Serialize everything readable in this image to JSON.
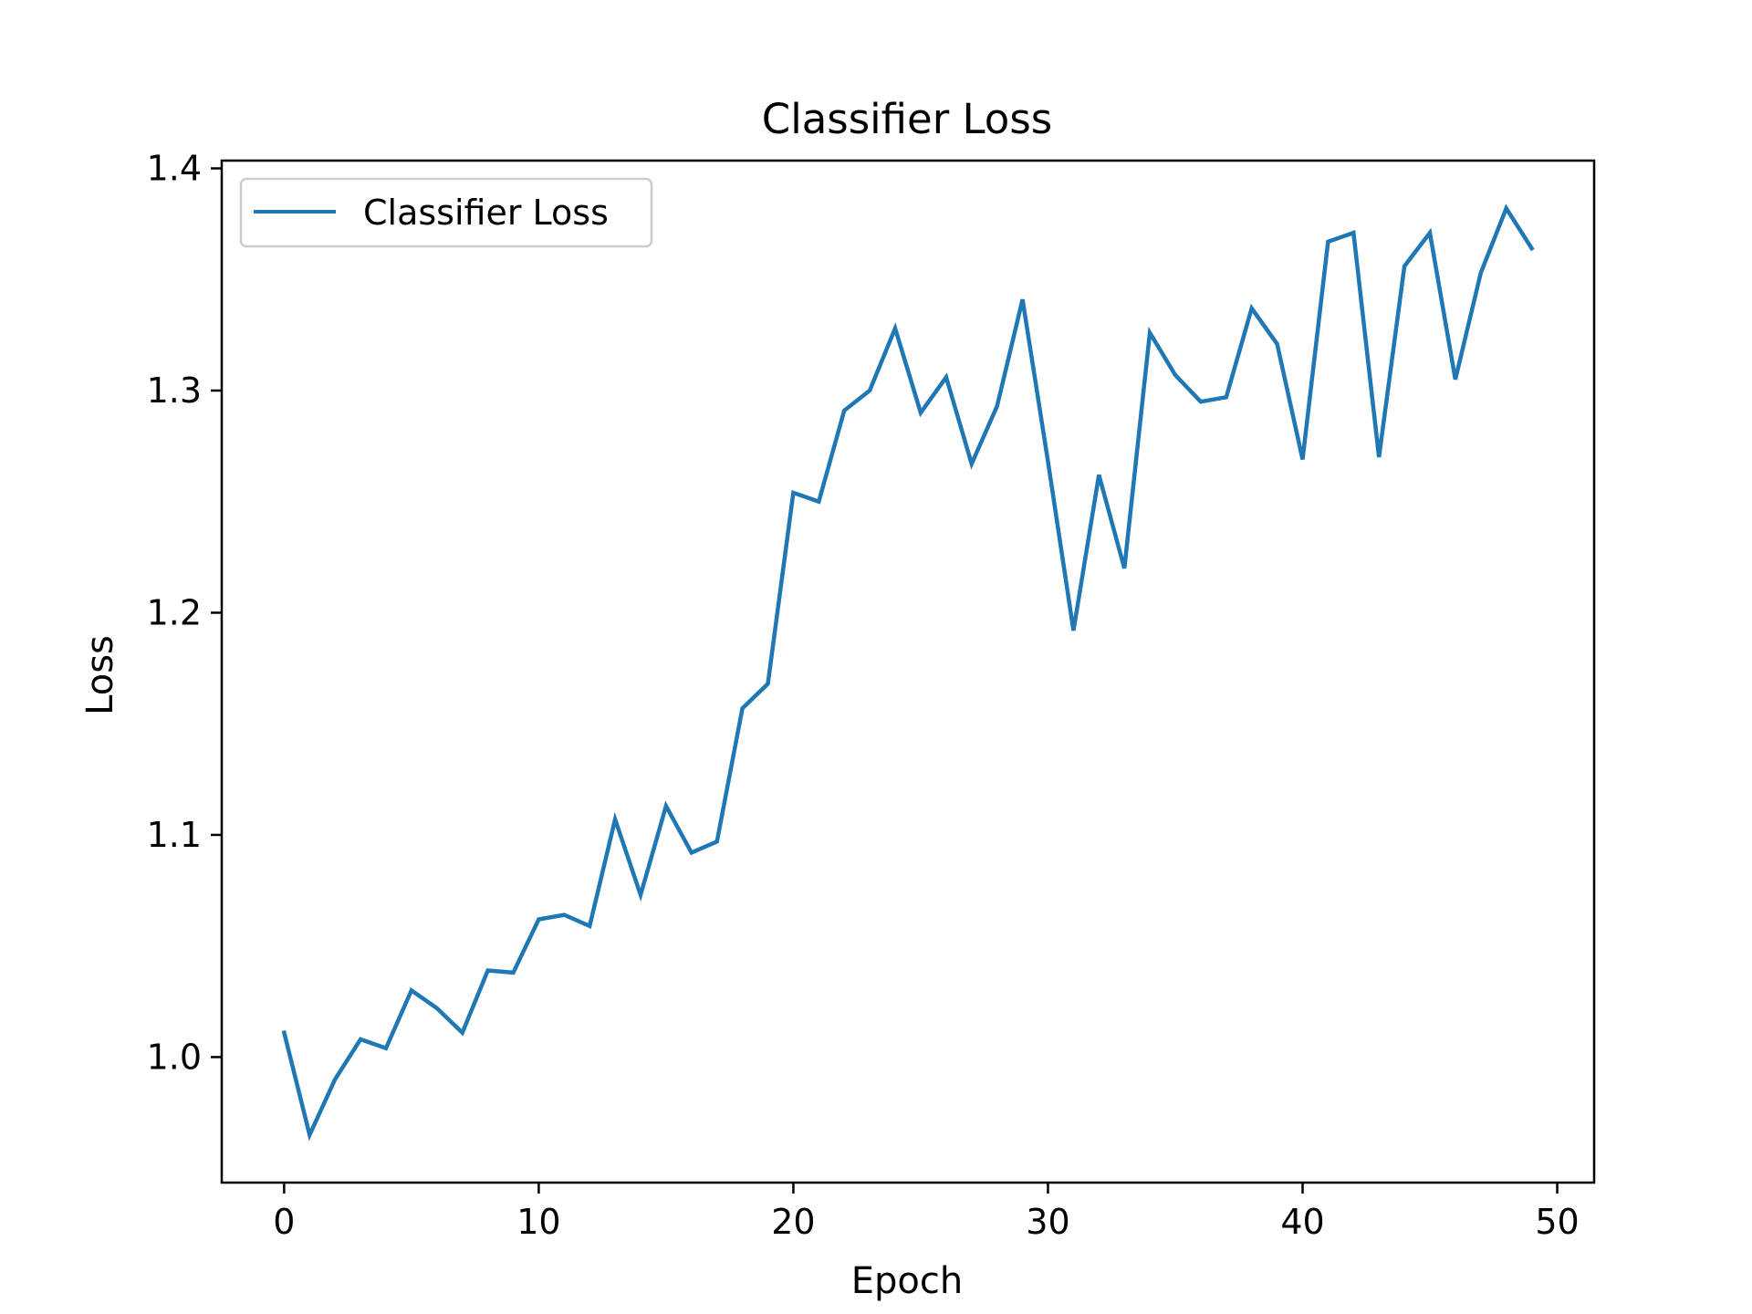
{
  "chart_data": {
    "type": "line",
    "title": "Classifier Loss",
    "xlabel": "Epoch",
    "ylabel": "Loss",
    "xlim": [
      -2.45,
      51.45
    ],
    "ylim": [
      0.9435,
      1.4035
    ],
    "xticks": [
      0,
      10,
      20,
      30,
      40,
      50
    ],
    "yticks": [
      1.0,
      1.1,
      1.2,
      1.3,
      1.4
    ],
    "xtick_labels": [
      "0",
      "10",
      "20",
      "30",
      "40",
      "50"
    ],
    "ytick_labels": [
      "1.0",
      "1.1",
      "1.2",
      "1.3",
      "1.4"
    ],
    "grid": false,
    "legend": {
      "placement": "upper-left"
    },
    "colors": {
      "series": "#1f77b4",
      "axes": "#000000",
      "legend_border": "#cccccc"
    },
    "series": [
      {
        "name": "Classifier Loss",
        "x": [
          0,
          1,
          2,
          3,
          4,
          5,
          6,
          7,
          8,
          9,
          10,
          11,
          12,
          13,
          14,
          15,
          16,
          17,
          18,
          19,
          20,
          21,
          22,
          23,
          24,
          25,
          26,
          27,
          28,
          29,
          30,
          31,
          32,
          33,
          34,
          35,
          36,
          37,
          38,
          39,
          40,
          41,
          42,
          43,
          44,
          45,
          46,
          47,
          48,
          49
        ],
        "y": [
          1.011,
          0.965,
          0.99,
          1.008,
          1.004,
          1.03,
          1.022,
          1.011,
          1.039,
          1.038,
          1.062,
          1.064,
          1.059,
          1.107,
          1.073,
          1.113,
          1.092,
          1.097,
          1.157,
          1.168,
          1.254,
          1.25,
          1.291,
          1.3,
          1.328,
          1.29,
          1.306,
          1.267,
          1.293,
          1.341,
          1.268,
          1.192,
          1.262,
          1.22,
          1.326,
          1.307,
          1.295,
          1.297,
          1.337,
          1.321,
          1.269,
          1.367,
          1.371,
          1.27,
          1.356,
          1.371,
          1.305,
          1.353,
          1.382,
          1.364
        ]
      }
    ]
  }
}
